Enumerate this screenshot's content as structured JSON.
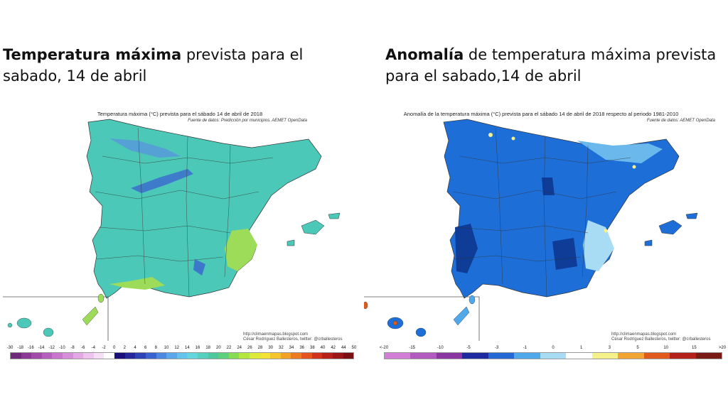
{
  "headlines": {
    "left": {
      "bold": "Temperatura máxima",
      "rest": " prevista para el sabado, 14 de abril"
    },
    "right": {
      "bold": "Anomalía",
      "rest": " de temperatura máxima prevista para el sabado,14 de abril"
    }
  },
  "left_map": {
    "title": "Temperatura máxima (°C) prevista para el sábado 14 de abril de 2018",
    "source": "Fuente de datos: Predicción por municipios. AEMET OpenData",
    "credit_line1": "http://climaenmapas.blogspot.com",
    "credit_line2": "César Rodríguez Ballesteros, twitter: @crballesteros",
    "scale_labels": [
      "-30",
      "-18",
      "-16",
      "-14",
      "-12",
      "-10",
      "-8",
      "-6",
      "-4",
      "-2",
      "0",
      "2",
      "4",
      "6",
      "8",
      "10",
      "12",
      "14",
      "16",
      "18",
      "20",
      "22",
      "24",
      "26",
      "28",
      "30",
      "32",
      "34",
      "36",
      "38",
      "40",
      "42",
      "44",
      "50"
    ],
    "scale_colors": [
      "#6e2a78",
      "#8a3a94",
      "#a24aaa",
      "#b45fbe",
      "#c776cc",
      "#d68ed9",
      "#e2a8e4",
      "#eec4ef",
      "#f6dff6",
      "#ffffff",
      "#1a0f7a",
      "#24279a",
      "#2e42b8",
      "#3a63d1",
      "#4c86e0",
      "#5aa6e8",
      "#64c3ea",
      "#62d6dc",
      "#56d0be",
      "#4cc89c",
      "#5cd07a",
      "#88dc54",
      "#b4e640",
      "#dcea38",
      "#f2e232",
      "#f4c42c",
      "#f2a026",
      "#ec7a22",
      "#e4541e",
      "#d2321c",
      "#b8201a",
      "#9a1618",
      "#7a1014"
    ]
  },
  "right_map": {
    "title": "Anomalía de la temperatura máxima (°C) prevista para el sábado 14 de abril de 2018 respecto al periodo 1981-2010",
    "source": "Fuente de datos: AEMET OpenData",
    "credit_line1": "http://climaenmapas.blogspot.com",
    "credit_line2": "César Rodríguez Ballesteros, twitter: @crballesteros",
    "scale_labels": [
      "<-20",
      "-15",
      "-10",
      "-5",
      "-3",
      "-1",
      "0",
      "1",
      "3",
      "5",
      "10",
      "15",
      ">20"
    ],
    "scale_colors": [
      "#d27ed6",
      "#b25ac0",
      "#8a36a0",
      "#1e2aa0",
      "#2468d4",
      "#4ea8ea",
      "#a8dcf4",
      "#ffffff",
      "#f4f08a",
      "#f2a432",
      "#e05a1e",
      "#b4201a",
      "#7a1a14"
    ]
  },
  "colors": {
    "left_land": "#4cc8b8",
    "left_warm": "#9cdc58",
    "left_cold": "#3a63d1",
    "right_land": "#1e6ed8",
    "right_dark": "#0e3c96",
    "right_light": "#a8dcf4"
  }
}
